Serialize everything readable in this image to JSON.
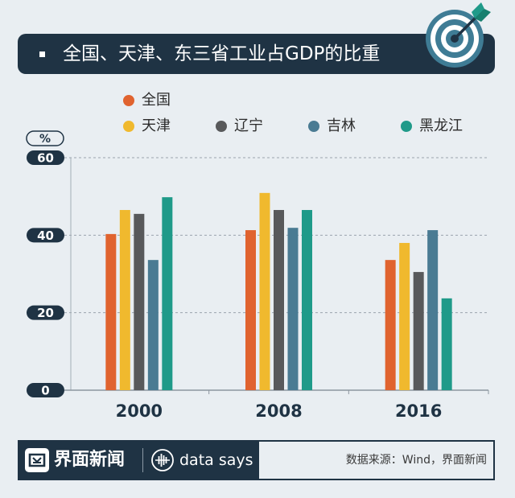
{
  "header": {
    "bullet_icon": "square-bullet-icon",
    "target_icon": "target-arrow-icon"
  },
  "chart_data": {
    "type": "bar",
    "title": "全国、天津、东三省工业占GDP的比重",
    "categories": [
      "2000",
      "2008",
      "2016"
    ],
    "series": [
      {
        "name": "全国",
        "color": "#e0632f",
        "values": [
          40.3,
          41.3,
          33.6
        ]
      },
      {
        "name": "天津",
        "color": "#f0b92e",
        "values": [
          46.5,
          50.9,
          38.0
        ]
      },
      {
        "name": "辽宁",
        "color": "#58595b",
        "values": [
          45.5,
          46.5,
          30.5
        ]
      },
      {
        "name": "吉林",
        "color": "#4a7b93",
        "values": [
          33.6,
          41.9,
          41.3
        ]
      },
      {
        "name": "黑龙江",
        "color": "#1f9a89",
        "values": [
          49.8,
          46.5,
          23.7
        ]
      }
    ],
    "ylabel": "%",
    "ylim": [
      0,
      60
    ],
    "yticks": [
      0,
      20,
      40,
      60
    ],
    "grid": true,
    "legend_position": "top-left"
  },
  "footer": {
    "brand_icon": "jiemian-logo-icon",
    "brand_name": "界面新闻",
    "partner_icon": "data-says-icon",
    "partner_name": "data says",
    "source": "数据来源：Wind，界面新闻"
  },
  "colors": {
    "navy": "#1f3344",
    "background": "#e9eef2",
    "target_blue": "#3f7c95",
    "accent_teal": "#1f9a89"
  }
}
